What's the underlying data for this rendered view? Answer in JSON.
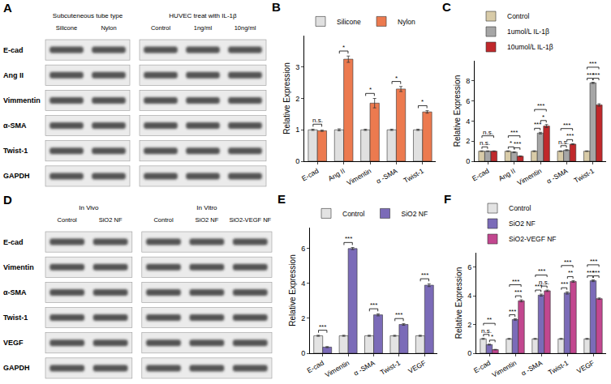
{
  "blots": [
    {
      "title": "A",
      "groups": [
        {
          "title": "Subcuteneous tube type",
          "lanes": [
            "Silicone",
            "Nylon"
          ]
        },
        {
          "title": "HUVEC treat with IL-1β",
          "lanes": [
            "Control",
            "1ng/ml",
            "10ng/ml"
          ]
        }
      ],
      "rows": [
        "E-cad",
        "Ang II",
        "Vimmentin",
        "α-SMA",
        "Twist-1",
        "GAPDH"
      ]
    },
    {
      "title": "D",
      "groups": [
        {
          "title": "In Vivo",
          "lanes": [
            "Control",
            "SiO2 NF"
          ]
        },
        {
          "title": "In Vitro",
          "lanes": [
            "Control",
            "SiO2 NF",
            "SiO2-VEGF NF"
          ]
        }
      ],
      "rows": [
        "E-cad",
        "Vimentin",
        "α-SMA",
        "Twist-1",
        "VEGF",
        "GAPDH"
      ]
    }
  ],
  "chart_data": [
    {
      "type": "bar",
      "title": "B",
      "ylabel": "Relative Expression",
      "categories": [
        "E-cad",
        "Ang II",
        "Vimentin",
        "α -SMA",
        "Twist-1"
      ],
      "series": [
        {
          "name": "Silicone",
          "color": "#e0e0e0",
          "values": [
            1,
            1,
            1,
            1,
            1
          ],
          "errors": [
            0.02,
            0.03,
            0.02,
            0.02,
            0.02
          ]
        },
        {
          "name": "Nylon",
          "color": "#ec7a4f",
          "values": [
            0.97,
            3.25,
            1.85,
            2.3,
            1.57
          ],
          "errors": [
            0.02,
            0.1,
            0.15,
            0.08,
            0.04
          ]
        }
      ],
      "ylim": [
        0,
        4
      ],
      "yticks": [
        0,
        1,
        2,
        3
      ],
      "grid": false,
      "legend": "top",
      "annotations": [
        {
          "category": "E-cad",
          "series": [
            "Silicone",
            "Nylon"
          ],
          "text": "n.s."
        },
        {
          "category": "Ang II",
          "series": [
            "Silicone",
            "Nylon"
          ],
          "text": "*"
        },
        {
          "category": "Vimentin",
          "series": [
            "Silicone",
            "Nylon"
          ],
          "text": "*"
        },
        {
          "category": "α -SMA",
          "series": [
            "Silicone",
            "Nylon"
          ],
          "text": "*"
        },
        {
          "category": "Twist-1",
          "series": [
            "Silicone",
            "Nylon"
          ],
          "text": "*"
        }
      ]
    },
    {
      "type": "bar",
      "title": "C",
      "ylabel": "Relative Expression",
      "categories": [
        "E-cad",
        "Ang II",
        "Vimentin",
        "α -SMA",
        "Twist-1"
      ],
      "series": [
        {
          "name": "Control",
          "color": "#d8cba8",
          "values": [
            1,
            1,
            1,
            1,
            1
          ],
          "errors": [
            0.03,
            0.03,
            0.04,
            0.03,
            0.03
          ]
        },
        {
          "name": "1umol/L IL-1β",
          "color": "#a6a6a6",
          "values": [
            1,
            0.9,
            2.8,
            1.1,
            7.8
          ],
          "errors": [
            0.03,
            0.04,
            0.08,
            0.05,
            0.06
          ]
        },
        {
          "name": "10umol/L IL-1β",
          "color": "#c0282b",
          "values": [
            1,
            0.5,
            3.5,
            1.7,
            5.6
          ],
          "errors": [
            0.03,
            0.03,
            0.15,
            0.05,
            0.12
          ]
        }
      ],
      "ylim": [
        0,
        10
      ],
      "yticks": [
        0,
        2,
        4,
        6,
        8
      ],
      "grid": false,
      "legend": "top",
      "annotations": [
        {
          "category": "E-cad",
          "series": [
            "Control",
            "1umol/L IL-1β"
          ],
          "text": "n.s."
        },
        {
          "category": "E-cad",
          "series": [
            "Control",
            "10umol/L IL-1β"
          ],
          "text": "n.s."
        },
        {
          "category": "Ang II",
          "series": [
            "Control",
            "1umol/L IL-1β"
          ],
          "text": "*"
        },
        {
          "category": "Ang II",
          "series": [
            "1umol/L IL-1β",
            "10umol/L IL-1β"
          ],
          "text": "***"
        },
        {
          "category": "Ang II",
          "series": [
            "Control",
            "10umol/L IL-1β"
          ],
          "text": "***"
        },
        {
          "category": "Vimentin",
          "series": [
            "Control",
            "1umol/L IL-1β"
          ],
          "text": "***"
        },
        {
          "category": "Vimentin",
          "series": [
            "1umol/L IL-1β",
            "10umol/L IL-1β"
          ],
          "text": "*"
        },
        {
          "category": "Vimentin",
          "series": [
            "Control",
            "10umol/L IL-1β"
          ],
          "text": "***"
        },
        {
          "category": "α -SMA",
          "series": [
            "Control",
            "1umol/L IL-1β"
          ],
          "text": "n.s."
        },
        {
          "category": "α -SMA",
          "series": [
            "1umol/L IL-1β",
            "10umol/L IL-1β"
          ],
          "text": "***"
        },
        {
          "category": "α -SMA",
          "series": [
            "Control",
            "10umol/L IL-1β"
          ],
          "text": "***"
        },
        {
          "category": "Twist-1",
          "series": [
            "Control",
            "1umol/L IL-1β"
          ],
          "text": "***"
        },
        {
          "category": "Twist-1",
          "series": [
            "1umol/L IL-1β",
            "10umol/L IL-1β"
          ],
          "text": "***"
        },
        {
          "category": "Twist-1",
          "series": [
            "Control",
            "10umol/L IL-1β"
          ],
          "text": "***"
        }
      ]
    },
    {
      "type": "bar",
      "title": "E",
      "ylabel": "Relative Expression",
      "categories": [
        "E-cad",
        "Vimentin",
        "α -SMA",
        "Twist-1",
        "VEGF"
      ],
      "series": [
        {
          "name": "Control",
          "color": "#e3e3e3",
          "values": [
            1,
            1,
            1,
            1,
            1
          ],
          "errors": [
            0.03,
            0.03,
            0.03,
            0.03,
            0.03
          ]
        },
        {
          "name": "SiO2 NF",
          "color": "#7b6bb8",
          "values": [
            0.35,
            6.0,
            2.2,
            1.65,
            3.9
          ],
          "errors": [
            0.03,
            0.06,
            0.06,
            0.05,
            0.08
          ]
        }
      ],
      "ylim": [
        0,
        7.2
      ],
      "yticks": [
        0,
        2,
        4,
        6
      ],
      "grid": false,
      "legend": "top",
      "annotations": [
        {
          "category": "E-cad",
          "series": [
            "Control",
            "SiO2 NF"
          ],
          "text": "***"
        },
        {
          "category": "Vimentin",
          "series": [
            "Control",
            "SiO2 NF"
          ],
          "text": "***"
        },
        {
          "category": "α -SMA",
          "series": [
            "Control",
            "SiO2 NF"
          ],
          "text": "***"
        },
        {
          "category": "Twist-1",
          "series": [
            "Control",
            "SiO2 NF"
          ],
          "text": "***"
        },
        {
          "category": "VEGF",
          "series": [
            "Control",
            "SiO2 NF"
          ],
          "text": "***"
        }
      ]
    },
    {
      "type": "bar",
      "title": "F",
      "ylabel": "Relative Expression",
      "categories": [
        "E-cad",
        "Vimentin",
        "α -SMA",
        "Twist-1",
        "VEGF"
      ],
      "series": [
        {
          "name": "Control",
          "color": "#e3e3e3",
          "values": [
            1,
            1,
            1,
            1,
            1
          ],
          "errors": [
            0.03,
            0.03,
            0.03,
            0.03,
            0.03
          ]
        },
        {
          "name": "SiO2 NF",
          "color": "#7b6bb8",
          "values": [
            0.6,
            2.35,
            4.05,
            4.2,
            5.05
          ],
          "errors": [
            0.03,
            0.05,
            0.07,
            0.08,
            0.06
          ]
        },
        {
          "name": "SiO2-VEGF NF",
          "color": "#c2478f",
          "values": [
            0.25,
            3.65,
            4.35,
            5.0,
            3.8
          ],
          "errors": [
            0.02,
            0.07,
            0.05,
            0.06,
            0.05
          ]
        }
      ],
      "ylim": [
        0,
        7
      ],
      "yticks": [
        0,
        2,
        4,
        6
      ],
      "grid": false,
      "legend": "top",
      "annotations": [
        {
          "category": "E-cad",
          "series": [
            "Control",
            "SiO2 NF"
          ],
          "text": "n.s."
        },
        {
          "category": "E-cad",
          "series": [
            "SiO2 NF",
            "SiO2-VEGF NF"
          ],
          "text": "*"
        },
        {
          "category": "E-cad",
          "series": [
            "Control",
            "SiO2-VEGF NF"
          ],
          "text": "**"
        },
        {
          "category": "Vimentin",
          "series": [
            "Control",
            "SiO2 NF"
          ],
          "text": "***"
        },
        {
          "category": "Vimentin",
          "series": [
            "SiO2 NF",
            "SiO2-VEGF NF"
          ],
          "text": "***"
        },
        {
          "category": "Vimentin",
          "series": [
            "Control",
            "SiO2-VEGF NF"
          ],
          "text": "***"
        },
        {
          "category": "α -SMA",
          "series": [
            "Control",
            "SiO2 NF"
          ],
          "text": "***"
        },
        {
          "category": "α -SMA",
          "series": [
            "SiO2 NF",
            "SiO2-VEGF NF"
          ],
          "text": "n.s."
        },
        {
          "category": "α -SMA",
          "series": [
            "Control",
            "SiO2-VEGF NF"
          ],
          "text": "***"
        },
        {
          "category": "Twist-1",
          "series": [
            "Control",
            "SiO2 NF"
          ],
          "text": "***"
        },
        {
          "category": "Twist-1",
          "series": [
            "SiO2 NF",
            "SiO2-VEGF NF"
          ],
          "text": "**"
        },
        {
          "category": "Twist-1",
          "series": [
            "Control",
            "SiO2-VEGF NF"
          ],
          "text": "***"
        },
        {
          "category": "VEGF",
          "series": [
            "Control",
            "SiO2 NF"
          ],
          "text": "***"
        },
        {
          "category": "VEGF",
          "series": [
            "SiO2 NF",
            "SiO2-VEGF NF"
          ],
          "text": "***"
        },
        {
          "category": "VEGF",
          "series": [
            "Control",
            "SiO2-VEGF NF"
          ],
          "text": "***"
        }
      ]
    }
  ]
}
